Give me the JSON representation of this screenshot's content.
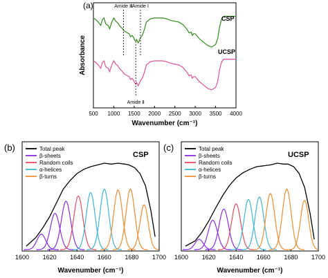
{
  "colors": {
    "csp": "#2e8b1c",
    "ucsp": "#e0509a",
    "total": "#000000",
    "beta_sheets": "#8a2be2",
    "random_coils": "#e84a5f",
    "alpha_helices": "#3ab7d6",
    "beta_turns": "#f08c2e",
    "frame": "#000000"
  },
  "chart_data": [
    {
      "panel_label": "(a)",
      "type": "line",
      "xlabel": "Wavenumber (cm⁻¹)",
      "ylabel": "Absorbance",
      "xlim": [
        500,
        4000
      ],
      "x_ticks": [
        "500",
        "1000",
        "1500",
        "2000",
        "2500",
        "3000",
        "3500",
        "4000"
      ],
      "y_ticks_shown": false,
      "series": [
        {
          "name": "CSP",
          "color_key": "csp",
          "x": [
            500,
            560,
            620,
            680,
            720,
            760,
            800,
            860,
            900,
            950,
            1000,
            1050,
            1100,
            1150,
            1200,
            1240,
            1270,
            1300,
            1340,
            1380,
            1410,
            1450,
            1480,
            1520,
            1540,
            1560,
            1600,
            1630,
            1650,
            1700,
            1750,
            1800,
            1900,
            2000,
            2100,
            2200,
            2300,
            2400,
            2500,
            2600,
            2700,
            2800,
            2850,
            2900,
            2930,
            2960,
            3000,
            3100,
            3200,
            3300,
            3400,
            3500,
            3550,
            3600,
            3650,
            3700,
            3800,
            3900,
            4000
          ],
          "y": [
            0.1,
            0.14,
            0.2,
            0.28,
            0.14,
            0.1,
            0.24,
            0.28,
            0.36,
            0.2,
            0.1,
            0.18,
            0.22,
            0.3,
            0.34,
            0.4,
            0.42,
            0.44,
            0.46,
            0.48,
            0.55,
            0.52,
            0.56,
            0.64,
            0.66,
            0.62,
            0.7,
            0.64,
            0.58,
            0.52,
            0.38,
            0.2,
            0.12,
            0.1,
            0.1,
            0.1,
            0.12,
            0.16,
            0.18,
            0.2,
            0.26,
            0.38,
            0.46,
            0.44,
            0.52,
            0.48,
            0.48,
            0.6,
            0.68,
            0.76,
            0.8,
            0.74,
            0.6,
            0.3,
            0.12,
            0.06,
            0.06,
            0.06,
            0.06
          ]
        },
        {
          "name": "UCSP",
          "color_key": "ucsp",
          "x": [
            500,
            560,
            620,
            680,
            720,
            760,
            800,
            860,
            900,
            950,
            1000,
            1050,
            1100,
            1150,
            1200,
            1240,
            1270,
            1300,
            1340,
            1380,
            1410,
            1450,
            1480,
            1520,
            1540,
            1560,
            1600,
            1630,
            1650,
            1700,
            1750,
            1800,
            1900,
            2000,
            2100,
            2200,
            2300,
            2400,
            2500,
            2600,
            2700,
            2800,
            2850,
            2900,
            2930,
            2960,
            3000,
            3100,
            3200,
            3300,
            3400,
            3500,
            3550,
            3600,
            3650,
            3700,
            3800,
            3900,
            4000
          ],
          "y": [
            0.1,
            0.14,
            0.2,
            0.28,
            0.14,
            0.1,
            0.24,
            0.28,
            0.36,
            0.2,
            0.1,
            0.18,
            0.22,
            0.3,
            0.34,
            0.4,
            0.42,
            0.44,
            0.46,
            0.48,
            0.55,
            0.52,
            0.56,
            0.64,
            0.66,
            0.62,
            0.7,
            0.64,
            0.58,
            0.52,
            0.38,
            0.2,
            0.12,
            0.1,
            0.1,
            0.1,
            0.12,
            0.16,
            0.18,
            0.2,
            0.26,
            0.38,
            0.46,
            0.44,
            0.52,
            0.48,
            0.48,
            0.6,
            0.68,
            0.76,
            0.8,
            0.74,
            0.6,
            0.3,
            0.12,
            0.06,
            0.06,
            0.06,
            0.06
          ]
        }
      ],
      "annotations": [
        {
          "text": "Amide Ⅲ",
          "x": 1240,
          "position": "top"
        },
        {
          "text": "Amide Ⅰ",
          "x": 1655,
          "position": "top"
        },
        {
          "text": "Amide Ⅱ",
          "x": 1540,
          "position": "bottom"
        }
      ]
    },
    {
      "panel_label": "(b)",
      "type": "line",
      "sample_label": "CSP",
      "xlabel": "Wavenumber (cm⁻¹)",
      "xlim": [
        1600,
        1700
      ],
      "x_ticks": [
        "1600",
        "1620",
        "1640",
        "1660",
        "1680",
        "1700"
      ],
      "y_ticks_shown": false,
      "legend": [
        "Total peak",
        "β-sheets",
        "Random coils",
        "α-helices",
        "β-turns"
      ],
      "total_peak": {
        "x": [
          1603,
          1610,
          1615,
          1620,
          1625,
          1630,
          1635,
          1640,
          1645,
          1650,
          1655,
          1660,
          1665,
          1670,
          1675,
          1678,
          1682,
          1686,
          1690,
          1694,
          1697
        ],
        "y": [
          0.04,
          0.14,
          0.25,
          0.38,
          0.54,
          0.7,
          0.8,
          0.88,
          0.93,
          0.96,
          0.98,
          1.0,
          0.99,
          1.0,
          0.99,
          0.98,
          0.95,
          0.88,
          0.74,
          0.45,
          0.15
        ]
      },
      "components": [
        {
          "type": "β-sheets",
          "center": 1614,
          "height": 0.18,
          "width": 3.2
        },
        {
          "type": "β-sheets",
          "center": 1624,
          "height": 0.42,
          "width": 3.4
        },
        {
          "type": "β-sheets",
          "center": 1632,
          "height": 0.56,
          "width": 3.4
        },
        {
          "type": "Random coils",
          "center": 1641,
          "height": 0.62,
          "width": 3.3
        },
        {
          "type": "α-helices",
          "center": 1650,
          "height": 0.66,
          "width": 3.2
        },
        {
          "type": "α-helices",
          "center": 1660,
          "height": 0.7,
          "width": 3.2
        },
        {
          "type": "β-turns",
          "center": 1670,
          "height": 0.69,
          "width": 3.2
        },
        {
          "type": "β-turns",
          "center": 1679,
          "height": 0.7,
          "width": 3.2
        },
        {
          "type": "β-turns",
          "center": 1689,
          "height": 0.52,
          "width": 3.0
        }
      ]
    },
    {
      "panel_label": "(c)",
      "type": "line",
      "sample_label": "UCSP",
      "xlabel": "Wavenumber (cm⁻¹)",
      "xlim": [
        1600,
        1700
      ],
      "x_ticks": [
        "1600",
        "1620",
        "1640",
        "1660",
        "1680",
        "1700"
      ],
      "y_ticks_shown": false,
      "legend": [
        "Total peak",
        "β-sheets",
        "Random coils",
        "α-helices",
        "β-turns"
      ],
      "total_peak": {
        "x": [
          1603,
          1610,
          1615,
          1620,
          1625,
          1630,
          1635,
          1640,
          1645,
          1650,
          1655,
          1660,
          1665,
          1670,
          1675,
          1678,
          1682,
          1686,
          1690,
          1694,
          1697
        ],
        "y": [
          0.04,
          0.1,
          0.2,
          0.33,
          0.48,
          0.62,
          0.74,
          0.83,
          0.89,
          0.93,
          0.96,
          0.97,
          0.98,
          1.0,
          0.99,
          0.99,
          0.96,
          0.88,
          0.72,
          0.42,
          0.12
        ]
      },
      "components": [
        {
          "type": "β-sheets",
          "center": 1613,
          "height": 0.12,
          "width": 3.0
        },
        {
          "type": "β-sheets",
          "center": 1623,
          "height": 0.34,
          "width": 3.4
        },
        {
          "type": "β-sheets",
          "center": 1631,
          "height": 0.47,
          "width": 3.4
        },
        {
          "type": "Random coils",
          "center": 1640,
          "height": 0.53,
          "width": 3.3
        },
        {
          "type": "α-helices",
          "center": 1649,
          "height": 0.58,
          "width": 3.2
        },
        {
          "type": "α-helices",
          "center": 1657,
          "height": 0.61,
          "width": 3.2
        },
        {
          "type": "β-turns",
          "center": 1665,
          "height": 0.65,
          "width": 3.2
        },
        {
          "type": "β-turns",
          "center": 1677,
          "height": 0.7,
          "width": 3.2
        },
        {
          "type": "β-turns",
          "center": 1690,
          "height": 0.57,
          "width": 3.0
        }
      ]
    }
  ]
}
